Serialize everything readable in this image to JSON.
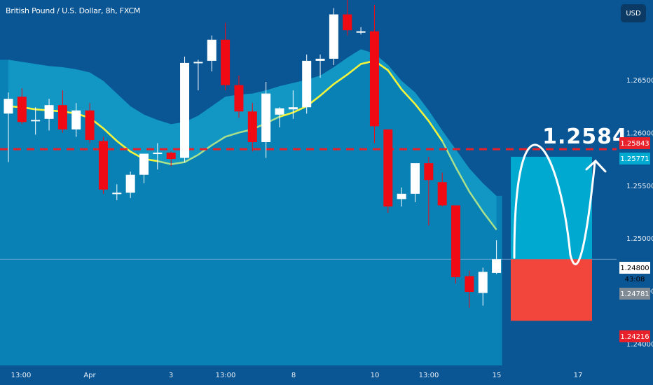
{
  "header": {
    "symbol_title": "British Pound / U.S. Dollar, 8h, FXCM",
    "currency_button": "USD"
  },
  "colors": {
    "background": "#0a5695",
    "bull_candle": "#ffffff",
    "bear_candle": "#f00a14",
    "area_fill": "#0a88bb",
    "area_band": "#1aa7cf",
    "ma_line": "#a9e08c",
    "ma_highlight": "#f2f33a",
    "target_line": "#e8202a",
    "target_zone": "#00a9cf",
    "stop_zone": "#f2463d",
    "axis_text": "#e7eef6"
  },
  "chart_data": {
    "type": "candlestick",
    "title": "British Pound / U.S. Dollar, 8h, FXCM",
    "ylim": [
      1.2386,
      1.2721
    ],
    "y_ticks": [
      "1.26500",
      "1.26000",
      "1.25500",
      "1.25000",
      "1.24500",
      "1.24000"
    ],
    "x_ticks": [
      "13:00",
      "Apr",
      "3",
      "13:00",
      "8",
      "10",
      "13:00",
      "15",
      "17"
    ],
    "candles": [
      {
        "o": 1.2618,
        "h": 1.2638,
        "l": 1.2572,
        "c": 1.2632
      },
      {
        "o": 1.2634,
        "h": 1.2642,
        "l": 1.2608,
        "c": 1.261
      },
      {
        "o": 1.2612,
        "h": 1.2624,
        "l": 1.2598,
        "c": 1.2612
      },
      {
        "o": 1.2613,
        "h": 1.2632,
        "l": 1.2602,
        "c": 1.2626
      },
      {
        "o": 1.2626,
        "h": 1.264,
        "l": 1.26,
        "c": 1.2603
      },
      {
        "o": 1.2603,
        "h": 1.2628,
        "l": 1.2596,
        "c": 1.2621
      },
      {
        "o": 1.2621,
        "h": 1.2628,
        "l": 1.259,
        "c": 1.2593
      },
      {
        "o": 1.2592,
        "h": 1.2596,
        "l": 1.2542,
        "c": 1.2546
      },
      {
        "o": 1.2543,
        "h": 1.2551,
        "l": 1.2536,
        "c": 1.2543
      },
      {
        "o": 1.2543,
        "h": 1.2563,
        "l": 1.2538,
        "c": 1.256
      },
      {
        "o": 1.256,
        "h": 1.258,
        "l": 1.2552,
        "c": 1.258
      },
      {
        "o": 1.258,
        "h": 1.259,
        "l": 1.2565,
        "c": 1.2581
      },
      {
        "o": 1.2581,
        "h": 1.2582,
        "l": 1.2568,
        "c": 1.2575
      },
      {
        "o": 1.2576,
        "h": 1.2672,
        "l": 1.2572,
        "c": 1.2666
      },
      {
        "o": 1.2666,
        "h": 1.2669,
        "l": 1.264,
        "c": 1.2667
      },
      {
        "o": 1.2668,
        "h": 1.2692,
        "l": 1.2658,
        "c": 1.2688
      },
      {
        "o": 1.2688,
        "h": 1.2704,
        "l": 1.264,
        "c": 1.2645
      },
      {
        "o": 1.2645,
        "h": 1.2654,
        "l": 1.2614,
        "c": 1.262
      },
      {
        "o": 1.262,
        "h": 1.2628,
        "l": 1.2582,
        "c": 1.2591
      },
      {
        "o": 1.2591,
        "h": 1.2648,
        "l": 1.2576,
        "c": 1.2637
      },
      {
        "o": 1.2617,
        "h": 1.2624,
        "l": 1.2605,
        "c": 1.2623
      },
      {
        "o": 1.2622,
        "h": 1.264,
        "l": 1.2613,
        "c": 1.2624
      },
      {
        "o": 1.2624,
        "h": 1.2674,
        "l": 1.2618,
        "c": 1.2668
      },
      {
        "o": 1.2668,
        "h": 1.2674,
        "l": 1.2652,
        "c": 1.267
      },
      {
        "o": 1.267,
        "h": 1.2718,
        "l": 1.2664,
        "c": 1.2712
      },
      {
        "o": 1.2712,
        "h": 1.2727,
        "l": 1.2692,
        "c": 1.2697
      },
      {
        "o": 1.2696,
        "h": 1.27,
        "l": 1.2693,
        "c": 1.2696
      },
      {
        "o": 1.2696,
        "h": 1.2721,
        "l": 1.259,
        "c": 1.2606
      },
      {
        "o": 1.2603,
        "h": 1.2603,
        "l": 1.2524,
        "c": 1.253
      },
      {
        "o": 1.2537,
        "h": 1.2548,
        "l": 1.253,
        "c": 1.2542
      },
      {
        "o": 1.2542,
        "h": 1.2568,
        "l": 1.2534,
        "c": 1.2571
      },
      {
        "o": 1.2571,
        "h": 1.2577,
        "l": 1.2512,
        "c": 1.2555
      },
      {
        "o": 1.2553,
        "h": 1.2562,
        "l": 1.253,
        "c": 1.2531
      },
      {
        "o": 1.2531,
        "h": 1.2531,
        "l": 1.2457,
        "c": 1.2463
      },
      {
        "o": 1.2464,
        "h": 1.2469,
        "l": 1.2434,
        "c": 1.2449
      },
      {
        "o": 1.2448,
        "h": 1.2472,
        "l": 1.2436,
        "c": 1.2468
      },
      {
        "o": 1.2467,
        "h": 1.2498,
        "l": 1.2466,
        "c": 1.248
      }
    ],
    "moving_average": [
      1.2625,
      1.2624,
      1.2622,
      1.2621,
      1.262,
      1.2618,
      1.2614,
      1.2604,
      1.2592,
      1.2582,
      1.2575,
      1.2573,
      1.257,
      1.2572,
      1.2579,
      1.2588,
      1.2596,
      1.26,
      1.2603,
      1.2609,
      1.2615,
      1.2619,
      1.2625,
      1.2635,
      1.2646,
      1.2655,
      1.2665,
      1.2668,
      1.2659,
      1.2641,
      1.2627,
      1.2611,
      1.2592,
      1.2567,
      1.2544,
      1.2525,
      1.2508
    ],
    "area_top": [
      1.2669,
      1.2667,
      1.2665,
      1.2663,
      1.2662,
      1.266,
      1.2657,
      1.2649,
      1.2637,
      1.2625,
      1.2617,
      1.2612,
      1.2608,
      1.261,
      1.2616,
      1.2625,
      1.2634,
      1.2636,
      1.2637,
      1.264,
      1.2644,
      1.2647,
      1.265,
      1.2654,
      1.2662,
      1.2671,
      1.2679,
      1.2675,
      1.2664,
      1.2649,
      1.2638,
      1.2621,
      1.2602,
      1.2584,
      1.2566,
      1.2552,
      1.254
    ],
    "annotations": {
      "target_label": "1.2584",
      "target_price": 1.25843,
      "current_price": 1.248,
      "countdown": "43:08",
      "target_zone_top": 1.25771,
      "zone_split": 1.248,
      "stop_zone_bottom": 1.24216,
      "secondary_price": 1.24781
    },
    "price_tags": [
      {
        "text": "1.25843",
        "value": 1.25843,
        "color": "#e8202a"
      },
      {
        "text": "1.25771",
        "value": 1.25771,
        "color": "#00a9cf"
      },
      {
        "text": "1.24800",
        "value": 1.248,
        "color": "#ffffff"
      },
      {
        "text": "43:08",
        "value": 1.248,
        "color": "#ffffff"
      },
      {
        "text": "1.24781",
        "value": 1.24781,
        "color": "#7f8a94"
      },
      {
        "text": "1.24216",
        "value": 1.24216,
        "color": "#e8202a"
      }
    ]
  }
}
